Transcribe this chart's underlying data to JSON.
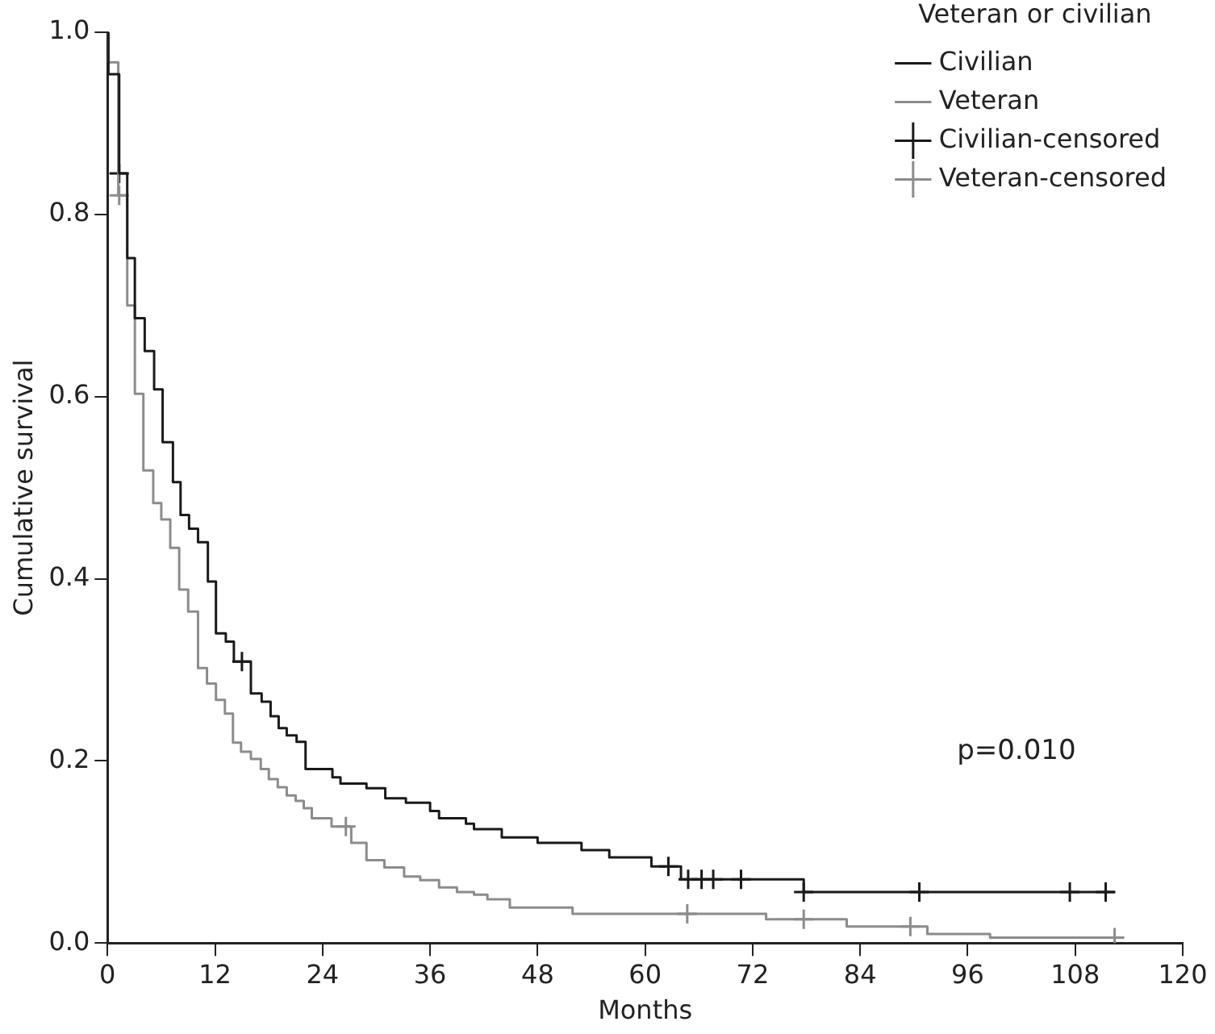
{
  "chart_data": {
    "type": "step",
    "xlabel": "Months",
    "ylabel": "Cumulative survival",
    "legend_title": "Veteran or civilian",
    "legend": "top right",
    "grid": false,
    "marker": "none",
    "line_style": "solid",
    "xlim": [
      0,
      120
    ],
    "xticks": [
      0,
      12,
      24,
      36,
      48,
      60,
      72,
      84,
      96,
      108,
      120
    ],
    "ylim": [
      0,
      1
    ],
    "yticks": [
      {
        "value": 0,
        "label": "0.0"
      },
      {
        "value": 0.2,
        "label": "0.2"
      },
      {
        "value": 0.4,
        "label": "0.4"
      },
      {
        "value": 0.6,
        "label": "0.6"
      },
      {
        "value": 0.8,
        "label": "0.8"
      },
      {
        "value": 1,
        "label": "1.0"
      }
    ],
    "annotations": [
      "p=0.010"
    ],
    "series": [
      {
        "name": "Civilian",
        "color": "#1a1a1a",
        "x": [
          0,
          0.1,
          1.3,
          2.2,
          3.05,
          4.15,
          5.2,
          6.15,
          7.3,
          8.15,
          9.1,
          10.1,
          11.2,
          12.1,
          13.2,
          14.1,
          16.0,
          17.2,
          18.2,
          19.1,
          20.0,
          21.1,
          22.1,
          25.1,
          26.0,
          28.9,
          31.0,
          33.3,
          36.0,
          37.0,
          40.0,
          40.9,
          44.0,
          48.0,
          52.9,
          56.0,
          60.7,
          64.0,
          77.7,
          112.4
        ],
        "values": [
          1.0,
          0.954,
          0.845,
          0.752,
          0.686,
          0.65,
          0.608,
          0.55,
          0.506,
          0.47,
          0.455,
          0.44,
          0.397,
          0.34,
          0.331,
          0.309,
          0.274,
          0.265,
          0.249,
          0.236,
          0.228,
          0.221,
          0.191,
          0.182,
          0.175,
          0.17,
          0.159,
          0.154,
          0.145,
          0.137,
          0.131,
          0.125,
          0.116,
          0.11,
          0.102,
          0.094,
          0.084,
          0.07,
          0.056,
          0.056
        ]
      },
      {
        "name": "Veteran",
        "color": "#8c8c8c",
        "x": [
          0,
          0.1,
          1.2,
          2.2,
          3.05,
          4.0,
          5.1,
          6.0,
          7.0,
          8.0,
          9.0,
          10.1,
          11.1,
          12.1,
          13.1,
          14.0,
          14.9,
          16.0,
          17.1,
          18.0,
          19.0,
          20.0,
          21.0,
          21.9,
          22.8,
          25.0,
          27.2,
          28.9,
          30.9,
          33.1,
          34.9,
          37.0,
          39.0,
          40.9,
          42.4,
          44.9,
          51.9,
          73.5,
          82.5,
          91.5,
          98.5,
          113.3
        ],
        "values": [
          1.0,
          0.967,
          0.821,
          0.7,
          0.603,
          0.519,
          0.483,
          0.465,
          0.434,
          0.388,
          0.364,
          0.302,
          0.285,
          0.267,
          0.252,
          0.22,
          0.21,
          0.202,
          0.191,
          0.18,
          0.171,
          0.162,
          0.156,
          0.148,
          0.137,
          0.128,
          0.11,
          0.091,
          0.083,
          0.073,
          0.069,
          0.061,
          0.056,
          0.053,
          0.048,
          0.039,
          0.032,
          0.026,
          0.018,
          0.01,
          0.006,
          0.006
        ]
      },
      {
        "name": "Civilian-censored",
        "type": "scatter",
        "marker": "cross",
        "color": "#1a1a1a",
        "x": [
          1.3,
          15,
          62.6,
          64.8,
          66.3,
          67.6,
          70.7,
          77.7,
          90.6,
          107.4,
          111.4
        ],
        "values": [
          0.845,
          0.309,
          0.084,
          0.07,
          0.07,
          0.07,
          0.07,
          0.056,
          0.056,
          0.056,
          0.056
        ]
      },
      {
        "name": "Veteran-censored",
        "type": "scatter",
        "marker": "cross",
        "color": "#8c8c8c",
        "x": [
          1.3,
          26.6,
          64.7,
          77.7,
          89.6,
          112.4
        ],
        "values": [
          0.821,
          0.128,
          0.032,
          0.026,
          0.018,
          0.006
        ]
      }
    ]
  }
}
